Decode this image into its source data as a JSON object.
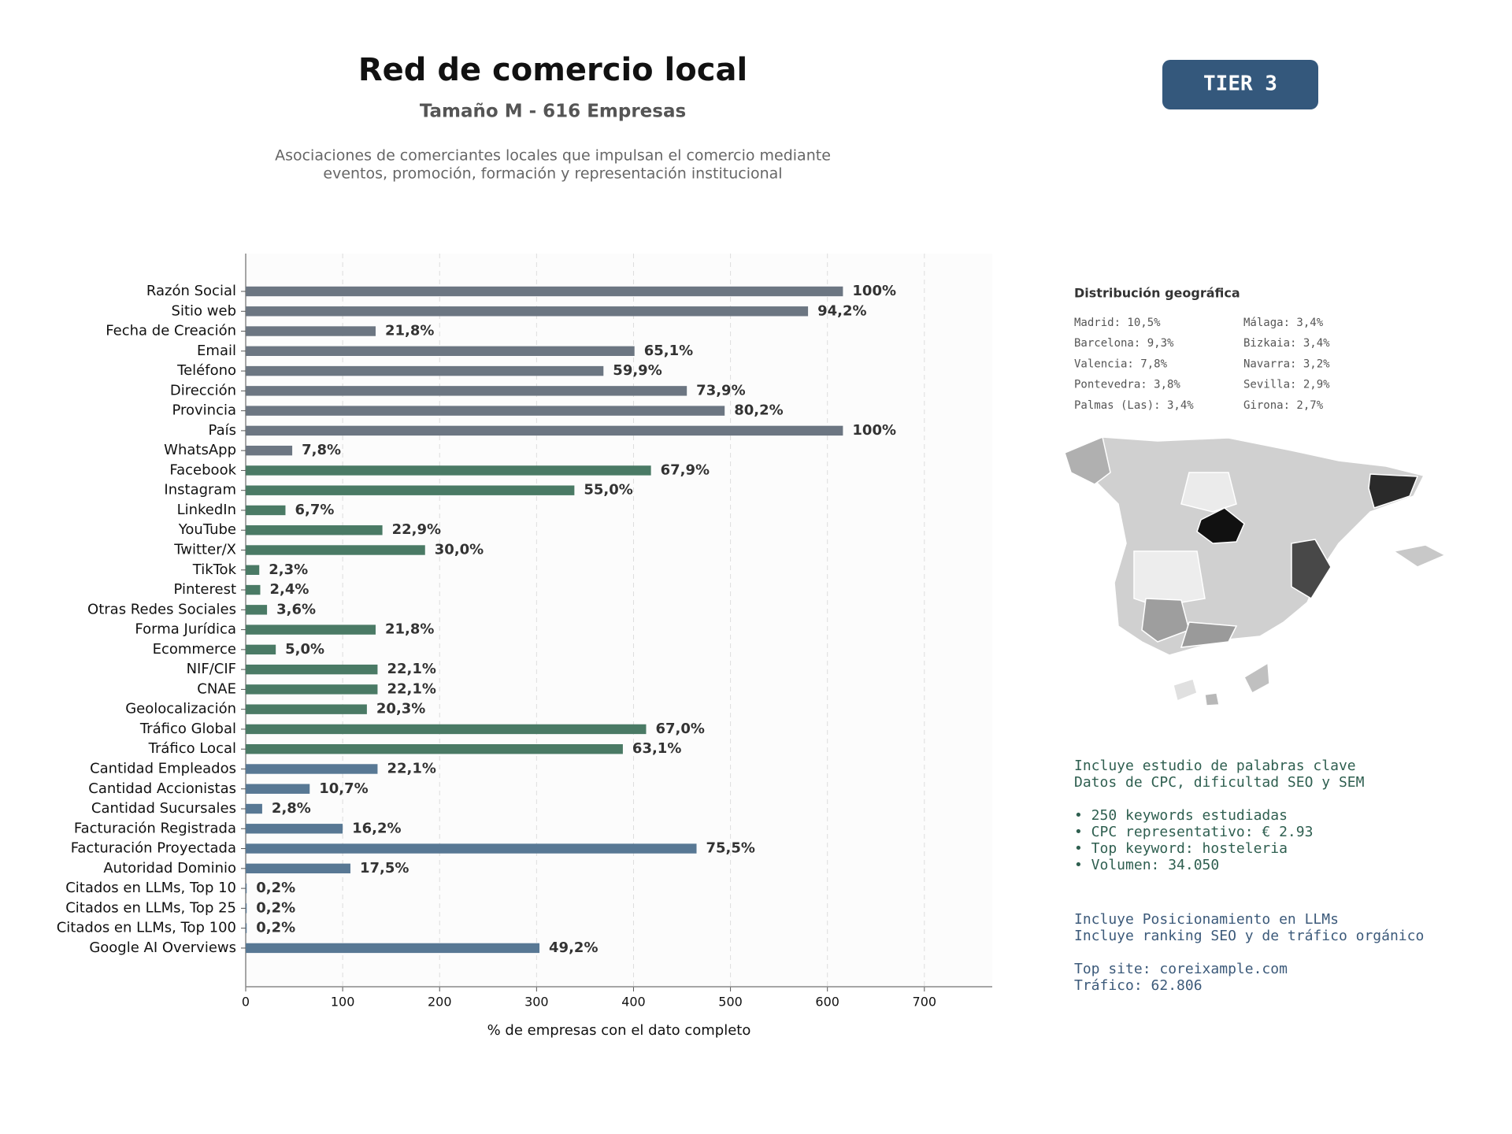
{
  "chart_data": {
    "type": "barh",
    "title": "Red de comercio local",
    "subtitle": "Tamaño M - 616 Empresas",
    "description": [
      "Asociaciones de comerciantes locales que impulsan el comercio mediante",
      "eventos, promoción, formación y representación institucional"
    ],
    "xlabel": "% de empresas con el dato completo",
    "categories": [
      "Razón Social",
      "Sitio web",
      "Fecha de Creación",
      "Email",
      "Teléfono",
      "Dirección",
      "Provincia",
      "País",
      "WhatsApp",
      "Facebook",
      "Instagram",
      "LinkedIn",
      "YouTube",
      "Twitter/X",
      "TikTok",
      "Pinterest",
      "Otras Redes Sociales",
      "Forma Jurídica",
      "Ecommerce",
      "NIF/CIF",
      "CNAE",
      "Geolocalización",
      "Tráfico Global",
      "Tráfico Local",
      "Cantidad Empleados",
      "Cantidad Accionistas",
      "Cantidad Sucursales",
      "Facturación Registrada",
      "Facturación Proyectada",
      "Autoridad Dominio",
      "Citados en LLMs, Top 10",
      "Citados en LLMs, Top 25",
      "Citados en LLMs, Top 100",
      "Google AI Overviews"
    ],
    "values": [
      616,
      580,
      134,
      401,
      369,
      455,
      494,
      616,
      48,
      418,
      339,
      41,
      141,
      185,
      14,
      15,
      22,
      134,
      31,
      136,
      136,
      125,
      413,
      389,
      136,
      66,
      17,
      100,
      465,
      108,
      1,
      1,
      1,
      303
    ],
    "value_labels": [
      "100%",
      "94,2%",
      "21,8%",
      "65,1%",
      "59,9%",
      "73,9%",
      "80,2%",
      "100%",
      "7,8%",
      "67,9%",
      "55,0%",
      "6,7%",
      "22,9%",
      "30,0%",
      "2,3%",
      "2,4%",
      "3,6%",
      "21,8%",
      "5,0%",
      "22,1%",
      "22,1%",
      "20,3%",
      "67,0%",
      "63,1%",
      "22,1%",
      "10,7%",
      "2,8%",
      "16,2%",
      "75,5%",
      "17,5%",
      "0,2%",
      "0,2%",
      "0,2%",
      "49,2%"
    ],
    "colors": [
      "#6c7682",
      "#6c7682",
      "#6c7682",
      "#6c7682",
      "#6c7682",
      "#6c7682",
      "#6c7682",
      "#6c7682",
      "#6c7682",
      "#4a7a65",
      "#4a7a65",
      "#4a7a65",
      "#4a7a65",
      "#4a7a65",
      "#4a7a65",
      "#4a7a65",
      "#4a7a65",
      "#4a7a65",
      "#4a7a65",
      "#4a7a65",
      "#4a7a65",
      "#4a7a65",
      "#4a7a65",
      "#4a7a65",
      "#587894",
      "#587894",
      "#587894",
      "#587894",
      "#587894",
      "#587894",
      "#587894",
      "#587894",
      "#587894",
      "#587894"
    ],
    "xlim": [
      0,
      770
    ],
    "xticks": [
      0,
      100,
      200,
      300,
      400,
      500,
      600,
      700
    ],
    "grid": true
  },
  "badge": "TIER 3",
  "geo": {
    "title": "Distribución geográfica",
    "items": [
      [
        "Madrid: 10,5%",
        "Málaga: 3,4%"
      ],
      [
        "Barcelona: 9,3%",
        "Bizkaia: 3,4%"
      ],
      [
        "Valencia: 7,8%",
        "Navarra: 3,2%"
      ],
      [
        "Pontevedra: 3,8%",
        "Sevilla: 2,9%"
      ],
      [
        "Palmas (Las): 3,4%",
        "Girona: 2,7%"
      ]
    ]
  },
  "keywords": [
    "Incluye estudio de palabras clave",
    "Datos de CPC, dificultad SEO y SEM",
    "",
    "• 250 keywords estudiadas",
    "• CPC representativo: € 2.93",
    "• Top keyword: hosteleria",
    "• Volumen: 34.050"
  ],
  "llm": [
    "Incluye Posicionamiento en LLMs",
    "Incluye ranking SEO y de tráfico orgánico",
    "",
    "Top site: coreixample.com",
    "Tráfico: 62.806"
  ]
}
